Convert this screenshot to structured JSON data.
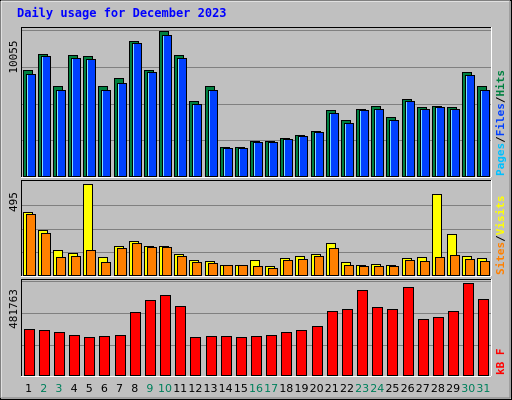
{
  "title": "Daily usage for December 2023",
  "colors": {
    "background": "#c0c0c0",
    "title": "#0000ff",
    "hits": "#008040",
    "files": "#0040ff",
    "pages": "#00c0ff",
    "visits": "#ffff00",
    "sites": "#ff8000",
    "kbytes": "#ff0000",
    "weekend_day_label": "#00805c",
    "weekday_day_label": "#000000"
  },
  "chart_data": [
    {
      "type": "bar",
      "panel": "hits-files-pages",
      "max_label": "10055",
      "ylim": [
        0,
        10055
      ],
      "right_labels": [
        {
          "text": "Pages",
          "color": "#00c0ff"
        },
        {
          "text": "/",
          "color": "#000000"
        },
        {
          "text": "Files",
          "color": "#0040ff"
        },
        {
          "text": "/",
          "color": "#000000"
        },
        {
          "text": "Hits",
          "color": "#008040"
        }
      ],
      "categories": [
        "1",
        "2",
        "3",
        "4",
        "5",
        "6",
        "7",
        "8",
        "9",
        "10",
        "11",
        "12",
        "13",
        "14",
        "15",
        "16",
        "17",
        "18",
        "19",
        "20",
        "21",
        "22",
        "23",
        "24",
        "25",
        "26",
        "27",
        "28",
        "29",
        "30",
        "31"
      ],
      "series": [
        {
          "name": "Hits",
          "values": [
            7400,
            8500,
            6300,
            8400,
            8300,
            6300,
            6800,
            9400,
            7400,
            10055,
            8400,
            5200,
            6300,
            2100,
            2100,
            2500,
            2500,
            2700,
            2900,
            3200,
            4600,
            3900,
            4700,
            4900,
            4100,
            5400,
            4800,
            4900,
            4800,
            7200,
            6300
          ]
        },
        {
          "name": "Files",
          "values": [
            7100,
            8300,
            6000,
            8200,
            8100,
            6000,
            6500,
            9200,
            7200,
            9800,
            8200,
            5000,
            6000,
            2000,
            2000,
            2400,
            2400,
            2600,
            2800,
            3100,
            4400,
            3700,
            4600,
            4700,
            3900,
            5200,
            4700,
            4800,
            4700,
            7000,
            6000
          ]
        }
      ]
    },
    {
      "type": "bar",
      "panel": "visits-sites",
      "max_label": "495",
      "ylim": [
        0,
        495
      ],
      "right_labels": [
        {
          "text": "Sites",
          "color": "#ff8000"
        },
        {
          "text": "/",
          "color": "#000000"
        },
        {
          "text": "Visits",
          "color": "#ffff00"
        }
      ],
      "categories": [
        "1",
        "2",
        "3",
        "4",
        "5",
        "6",
        "7",
        "8",
        "9",
        "10",
        "11",
        "12",
        "13",
        "14",
        "15",
        "16",
        "17",
        "18",
        "19",
        "20",
        "21",
        "22",
        "23",
        "24",
        "25",
        "26",
        "27",
        "28",
        "29",
        "30",
        "31"
      ],
      "series": [
        {
          "name": "Visits",
          "values": [
            345,
            250,
            138,
            124,
            495,
            100,
            160,
            190,
            160,
            160,
            120,
            85,
            80,
            60,
            60,
            85,
            55,
            95,
            110,
            120,
            180,
            75,
            60,
            65,
            60,
            95,
            100,
            440,
            225,
            110,
            95
          ]
        },
        {
          "name": "Sites",
          "values": [
            335,
            230,
            100,
            105,
            140,
            75,
            150,
            175,
            155,
            155,
            110,
            75,
            70,
            60,
            60,
            55,
            45,
            85,
            90,
            105,
            150,
            60,
            55,
            55,
            55,
            85,
            80,
            100,
            115,
            90,
            80
          ]
        }
      ]
    },
    {
      "type": "bar",
      "panel": "kbytes",
      "max_label": "481763",
      "ylim": [
        0,
        481763
      ],
      "right_labels": [
        {
          "text": "kB",
          "color": "#ff0000"
        },
        {
          "text": "F",
          "color": "#ff0000"
        }
      ],
      "categories": [
        "1",
        "2",
        "3",
        "4",
        "5",
        "6",
        "7",
        "8",
        "9",
        "10",
        "11",
        "12",
        "13",
        "14",
        "15",
        "16",
        "17",
        "18",
        "19",
        "20",
        "21",
        "22",
        "23",
        "24",
        "25",
        "26",
        "27",
        "28",
        "29",
        "30",
        "31"
      ],
      "series": [
        {
          "name": "KBytes",
          "values": [
            245000,
            240000,
            230000,
            210000,
            200000,
            205000,
            210000,
            330000,
            395000,
            420000,
            365000,
            200000,
            205000,
            205000,
            200000,
            205000,
            210000,
            230000,
            240000,
            260000,
            335000,
            345000,
            445000,
            355000,
            345000,
            460000,
            295000,
            305000,
            335000,
            481763,
            400000
          ]
        }
      ]
    }
  ],
  "weekend_days": [
    "2",
    "3",
    "9",
    "10",
    "16",
    "17",
    "23",
    "24",
    "30",
    "31"
  ]
}
